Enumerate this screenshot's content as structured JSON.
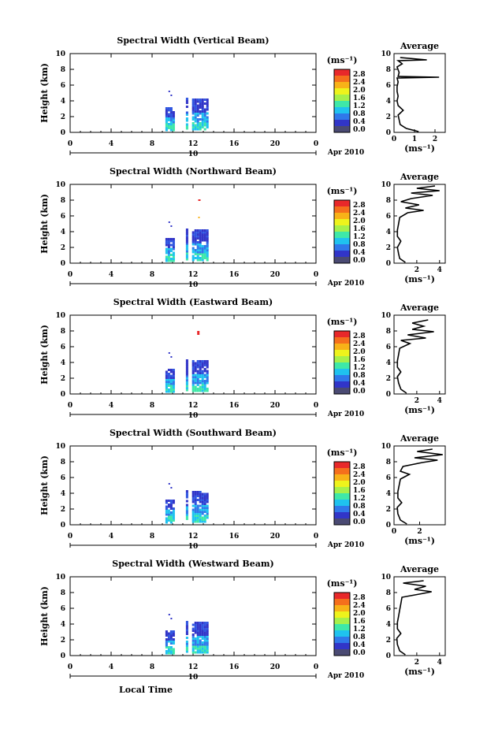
{
  "figure": {
    "date_label": "Apr 2010",
    "day_label": "10",
    "xlabel_bottom": "Local Time",
    "colorbar_unit": "(ms⁻¹)",
    "colorbar_ticks": [
      "2.8",
      "2.4",
      "2.0",
      "1.6",
      "1.2",
      "0.8",
      "0.4",
      "0.0"
    ],
    "colorbar_colors": [
      "#e8282a",
      "#f56f1c",
      "#f8b218",
      "#eef31c",
      "#a6f04a",
      "#3ee8a8",
      "#1fc2ef",
      "#2f78ea",
      "#3135c8",
      "#4a4a73"
    ],
    "average_title": "Average",
    "average_xlabel": "(ms⁻¹)",
    "height_ylabel": "Height (km)"
  },
  "chart_data": [
    {
      "type": "heatmap",
      "title": "Spectral Width (Vertical Beam)",
      "ylabel": "Height (km)",
      "xlim": [
        0,
        24
      ],
      "ylim": [
        0,
        10
      ],
      "xticks": [
        "0",
        "4",
        "8",
        "12",
        "16",
        "20",
        "0"
      ],
      "yticks": [
        "0",
        "2",
        "4",
        "6",
        "8",
        "10"
      ],
      "avg_profile": {
        "title": "Average",
        "xlabel": "(ms⁻¹)",
        "xticks": [
          "0",
          "1",
          "2"
        ],
        "xlim": [
          0,
          2.5
        ],
        "ylim": [
          0,
          10
        ],
        "points": [
          [
            1.2,
            0.1
          ],
          [
            0.6,
            0.5
          ],
          [
            0.3,
            1
          ],
          [
            0.25,
            1.6
          ],
          [
            0.2,
            2.2
          ],
          [
            0.45,
            2.8
          ],
          [
            0.2,
            3.4
          ],
          [
            0.15,
            4
          ],
          [
            0.2,
            4.6
          ],
          [
            0.15,
            5.2
          ],
          [
            0.15,
            5.8
          ],
          [
            0.2,
            6.4
          ],
          [
            0.15,
            6.9
          ],
          [
            2.2,
            7.0
          ],
          [
            0.2,
            7.1
          ],
          [
            0.25,
            7.6
          ],
          [
            0.15,
            8.3
          ],
          [
            0.4,
            8.7
          ],
          [
            0.2,
            9.1
          ],
          [
            1.6,
            9.2
          ],
          [
            0.3,
            9.5
          ]
        ]
      }
    },
    {
      "type": "heatmap",
      "title": "Spectral Width (Northward Beam)",
      "ylabel": "Height (km)",
      "xlim": [
        0,
        24
      ],
      "ylim": [
        0,
        10
      ],
      "xticks": [
        "0",
        "4",
        "8",
        "12",
        "16",
        "20",
        "0"
      ],
      "yticks": [
        "0",
        "2",
        "4",
        "6",
        "8",
        "10"
      ],
      "avg_profile": {
        "title": "Average",
        "xlabel": "(ms⁻¹)",
        "xticks": [
          "2",
          "4"
        ],
        "xlim": [
          0,
          4.5
        ],
        "ylim": [
          0,
          10
        ],
        "points": [
          [
            1.0,
            0.1
          ],
          [
            0.5,
            0.6
          ],
          [
            0.4,
            1.2
          ],
          [
            0.3,
            2
          ],
          [
            0.6,
            2.8
          ],
          [
            0.3,
            3.4
          ],
          [
            0.3,
            4.2
          ],
          [
            0.4,
            5
          ],
          [
            0.5,
            5.8
          ],
          [
            1.2,
            6.4
          ],
          [
            2.6,
            6.7
          ],
          [
            1.0,
            7.0
          ],
          [
            2.2,
            7.4
          ],
          [
            0.6,
            7.8
          ],
          [
            1.5,
            8.2
          ],
          [
            3.4,
            8.6
          ],
          [
            1.5,
            8.9
          ],
          [
            4.0,
            9.2
          ],
          [
            2.0,
            9.5
          ],
          [
            3.6,
            9.8
          ]
        ]
      }
    },
    {
      "type": "heatmap",
      "title": "Spectral Width (Eastward Beam)",
      "ylabel": "Height (km)",
      "xlim": [
        0,
        24
      ],
      "ylim": [
        0,
        10
      ],
      "xticks": [
        "0",
        "4",
        "8",
        "12",
        "16",
        "20",
        "0"
      ],
      "yticks": [
        "0",
        "2",
        "4",
        "6",
        "8",
        "10"
      ],
      "avg_profile": {
        "title": "Average",
        "xlabel": "(ms⁻¹)",
        "xticks": [
          "2",
          "4"
        ],
        "xlim": [
          0,
          4.5
        ],
        "ylim": [
          0,
          10
        ],
        "points": [
          [
            1.1,
            0.1
          ],
          [
            0.6,
            0.6
          ],
          [
            0.4,
            1.4
          ],
          [
            0.3,
            2.2
          ],
          [
            0.6,
            2.8
          ],
          [
            0.3,
            3.4
          ],
          [
            0.3,
            4.2
          ],
          [
            0.4,
            5
          ],
          [
            0.5,
            5.8
          ],
          [
            1.4,
            6.4
          ],
          [
            0.6,
            6.8
          ],
          [
            2.8,
            7.1
          ],
          [
            1.2,
            7.5
          ],
          [
            3.5,
            7.9
          ],
          [
            1.6,
            8.2
          ],
          [
            2.6,
            8.6
          ],
          [
            1.6,
            9.0
          ],
          [
            3.0,
            9.4
          ]
        ]
      }
    },
    {
      "type": "heatmap",
      "title": "Spectral Width (Southward Beam)",
      "ylabel": "Height (km)",
      "xlim": [
        0,
        24
      ],
      "ylim": [
        0,
        10
      ],
      "xticks": [
        "0",
        "4",
        "8",
        "12",
        "16",
        "20",
        "0"
      ],
      "yticks": [
        "0",
        "2",
        "4",
        "6",
        "8",
        "10"
      ],
      "avg_profile": {
        "title": "Average",
        "xlabel": "(ms⁻¹)",
        "xticks": [
          "0",
          "2"
        ],
        "xlim": [
          0,
          4
        ],
        "ylim": [
          0,
          10
        ],
        "points": [
          [
            1.0,
            0.1
          ],
          [
            0.5,
            0.6
          ],
          [
            0.3,
            1.4
          ],
          [
            0.25,
            2.2
          ],
          [
            0.6,
            2.8
          ],
          [
            0.3,
            3.4
          ],
          [
            0.3,
            4.2
          ],
          [
            0.4,
            5
          ],
          [
            0.5,
            5.8
          ],
          [
            1.2,
            6.4
          ],
          [
            0.5,
            6.8
          ],
          [
            0.7,
            7.4
          ],
          [
            2.2,
            7.9
          ],
          [
            3.4,
            8.2
          ],
          [
            1.6,
            8.5
          ],
          [
            3.8,
            8.9
          ],
          [
            1.8,
            9.3
          ],
          [
            3.0,
            9.6
          ]
        ]
      }
    },
    {
      "type": "heatmap",
      "title": "Spectral Width (Westward Beam)",
      "ylabel": "Height (km)",
      "xlim": [
        0,
        24
      ],
      "ylim": [
        0,
        10
      ],
      "xticks": [
        "0",
        "4",
        "8",
        "12",
        "16",
        "20",
        "0"
      ],
      "yticks": [
        "0",
        "2",
        "4",
        "6",
        "8",
        "10"
      ],
      "avg_profile": {
        "title": "Average",
        "xlabel": "(ms⁻¹)",
        "xticks": [
          "2",
          "4"
        ],
        "xlim": [
          0,
          4.5
        ],
        "ylim": [
          0,
          10
        ],
        "points": [
          [
            1.0,
            0.1
          ],
          [
            0.5,
            0.6
          ],
          [
            0.3,
            1.4
          ],
          [
            0.25,
            2.2
          ],
          [
            0.6,
            2.8
          ],
          [
            0.3,
            3.4
          ],
          [
            0.3,
            4.2
          ],
          [
            0.4,
            5
          ],
          [
            0.5,
            5.8
          ],
          [
            0.6,
            6.6
          ],
          [
            0.7,
            7.4
          ],
          [
            2.6,
            7.9
          ],
          [
            3.3,
            8.1
          ],
          [
            1.8,
            8.4
          ],
          [
            2.8,
            8.8
          ],
          [
            0.8,
            9.2
          ],
          [
            2.6,
            9.5
          ]
        ]
      }
    }
  ]
}
